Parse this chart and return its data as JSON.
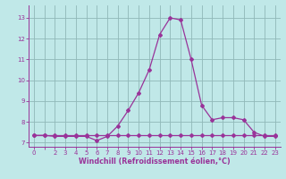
{
  "xlim": [
    -0.5,
    23.5
  ],
  "ylim": [
    6.8,
    13.6
  ],
  "yticks": [
    7,
    8,
    9,
    10,
    11,
    12,
    13
  ],
  "xticks": [
    0,
    1,
    2,
    3,
    4,
    5,
    6,
    7,
    8,
    9,
    10,
    11,
    12,
    13,
    14,
    15,
    16,
    17,
    18,
    19,
    20,
    21,
    22,
    23
  ],
  "xtick_labels": [
    "0",
    "",
    "2",
    "3",
    "4",
    "5",
    "6",
    "7",
    "8",
    "9",
    "10",
    "11",
    "12",
    "13",
    "14",
    "15",
    "16",
    "17",
    "18",
    "19",
    "20",
    "21",
    "22",
    "23"
  ],
  "background_color": "#c0e8e8",
  "grid_color": "#90b8b8",
  "line_color": "#993399",
  "spine_color": "#993399",
  "xlabel": "Windchill (Refroidissement éolien,°C)",
  "xlabel_fontsize": 5.8,
  "tick_fontsize": 5.0,
  "series1_x": [
    0,
    1,
    2,
    3,
    4,
    5,
    6,
    7,
    8,
    9,
    10,
    11,
    12,
    13,
    14,
    15,
    16,
    17,
    18,
    19,
    20,
    21,
    22,
    23
  ],
  "series1_y": [
    7.35,
    7.35,
    7.35,
    7.35,
    7.35,
    7.35,
    7.35,
    7.35,
    7.35,
    7.35,
    7.35,
    7.35,
    7.35,
    7.35,
    7.35,
    7.35,
    7.35,
    7.35,
    7.35,
    7.35,
    7.35,
    7.35,
    7.35,
    7.35
  ],
  "series2_x": [
    0,
    1,
    2,
    3,
    4,
    5,
    6,
    7,
    8,
    9,
    10,
    11,
    12,
    13,
    14,
    15,
    16,
    17,
    18,
    19,
    20,
    21,
    22,
    23
  ],
  "series2_y": [
    7.35,
    7.35,
    7.3,
    7.3,
    7.3,
    7.3,
    7.1,
    7.3,
    7.8,
    8.55,
    9.4,
    10.5,
    12.2,
    13.0,
    12.9,
    11.0,
    8.8,
    8.1,
    8.2,
    8.2,
    8.1,
    7.5,
    7.3,
    7.3
  ],
  "figsize": [
    3.2,
    2.0
  ],
  "dpi": 100
}
